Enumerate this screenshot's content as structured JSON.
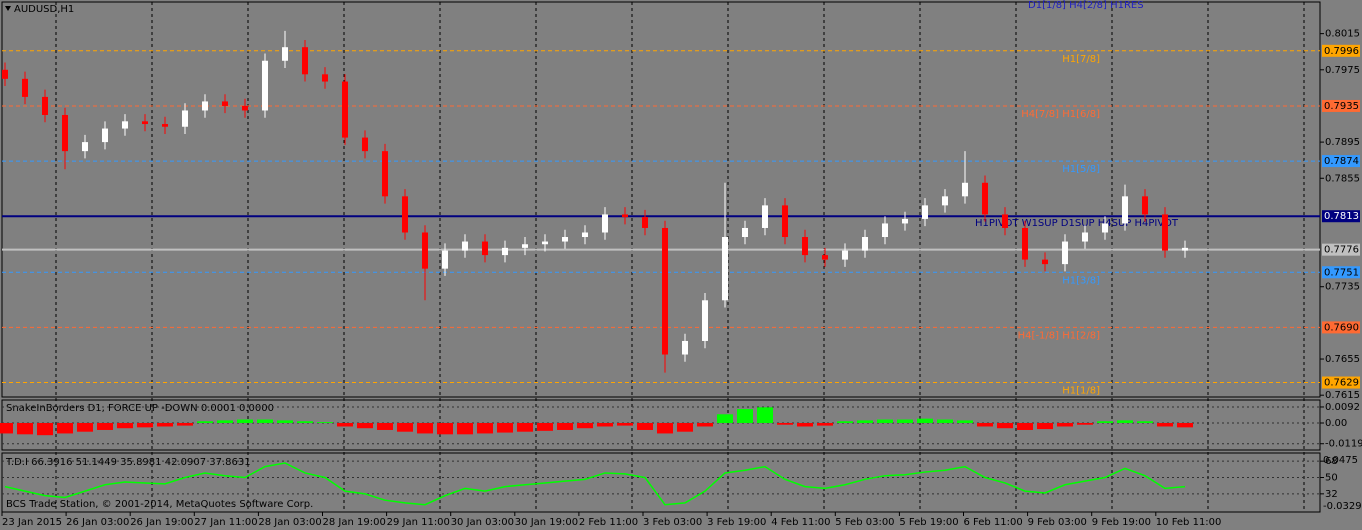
{
  "chart_data": [
    {
      "type": "candlestick",
      "title": "AUDUSD,H1",
      "top_note": "D1[1/8] H4[2/8] H1RES",
      "pivot_note": "H1PIVOT W1SUP D1SUP H4SUP H4PIVOT",
      "x_labels": [
        "23 Jan 2015",
        "26 Jan 03:00",
        "26 Jan 19:00",
        "27 Jan 11:00",
        "28 Jan 03:00",
        "28 Jan 19:00",
        "29 Jan 11:00",
        "30 Jan 03:00",
        "30 Jan 19:00",
        "2 Feb 11:00",
        "3 Feb 03:00",
        "3 Feb 19:00",
        "4 Feb 11:00",
        "5 Feb 03:00",
        "5 Feb 19:00",
        "6 Feb 11:00",
        "9 Feb 03:00",
        "9 Feb 19:00",
        "10 Feb 11:00"
      ],
      "open": [
        0.7975,
        0.7965,
        0.7945,
        0.7925,
        0.7885,
        0.7895,
        0.791,
        0.7918,
        0.7915,
        0.7912,
        0.793,
        0.794,
        0.7935,
        0.793,
        0.7985,
        0.8,
        0.797,
        0.7962,
        0.79,
        0.7885,
        0.7835,
        0.7795,
        0.7755,
        0.7775,
        0.7785,
        0.777,
        0.7778,
        0.7782,
        0.7785,
        0.779,
        0.7795,
        0.7815,
        0.7812,
        0.78,
        0.766,
        0.7675,
        0.772,
        0.779,
        0.78,
        0.7825,
        0.779,
        0.777,
        0.7765,
        0.7775,
        0.779,
        0.7805,
        0.781,
        0.7825,
        0.7835,
        0.785,
        0.7815,
        0.78,
        0.7765,
        0.776,
        0.7785,
        0.7795,
        0.7805,
        0.7835,
        0.7815,
        0.7775
      ],
      "high": [
        0.7983,
        0.7973,
        0.7953,
        0.7933,
        0.7903,
        0.7918,
        0.7926,
        0.7926,
        0.7923,
        0.7938,
        0.7948,
        0.7948,
        0.7943,
        0.7993,
        0.8018,
        0.8008,
        0.7978,
        0.797,
        0.7908,
        0.7893,
        0.7843,
        0.7803,
        0.7783,
        0.7793,
        0.7793,
        0.7786,
        0.779,
        0.7793,
        0.7798,
        0.7803,
        0.7823,
        0.7823,
        0.782,
        0.7808,
        0.7683,
        0.7728,
        0.785,
        0.7808,
        0.7833,
        0.7833,
        0.7798,
        0.7778,
        0.7783,
        0.7798,
        0.7813,
        0.7818,
        0.7833,
        0.7843,
        0.7885,
        0.7858,
        0.7823,
        0.7808,
        0.7773,
        0.7793,
        0.7803,
        0.7813,
        0.7848,
        0.7843,
        0.7823,
        0.7786
      ],
      "low": [
        0.7957,
        0.7937,
        0.7917,
        0.7865,
        0.7877,
        0.7887,
        0.7902,
        0.7907,
        0.7904,
        0.7904,
        0.7922,
        0.7927,
        0.7922,
        0.7922,
        0.7977,
        0.7962,
        0.7954,
        0.7892,
        0.7877,
        0.7827,
        0.7787,
        0.772,
        0.7747,
        0.7767,
        0.7762,
        0.7762,
        0.777,
        0.7774,
        0.7777,
        0.7782,
        0.7787,
        0.7804,
        0.7792,
        0.764,
        0.7652,
        0.7667,
        0.7712,
        0.7782,
        0.7792,
        0.7782,
        0.7762,
        0.7757,
        0.7757,
        0.7767,
        0.7782,
        0.7797,
        0.7802,
        0.7817,
        0.7827,
        0.7807,
        0.7792,
        0.7757,
        0.7752,
        0.7752,
        0.7777,
        0.7787,
        0.7797,
        0.7807,
        0.7767,
        0.7767
      ],
      "close": [
        0.7965,
        0.7945,
        0.7925,
        0.7885,
        0.7895,
        0.791,
        0.7918,
        0.7915,
        0.7912,
        0.793,
        0.794,
        0.7935,
        0.793,
        0.7985,
        0.8,
        0.797,
        0.7962,
        0.79,
        0.7885,
        0.7835,
        0.7795,
        0.7755,
        0.7775,
        0.7785,
        0.777,
        0.7778,
        0.7782,
        0.7785,
        0.779,
        0.7795,
        0.7815,
        0.7812,
        0.78,
        0.766,
        0.7675,
        0.772,
        0.779,
        0.78,
        0.7825,
        0.779,
        0.777,
        0.7765,
        0.7775,
        0.779,
        0.7805,
        0.781,
        0.7825,
        0.7835,
        0.785,
        0.7815,
        0.78,
        0.7765,
        0.776,
        0.7785,
        0.7795,
        0.7805,
        0.7835,
        0.7815,
        0.7775,
        0.7778
      ],
      "up_color": "#ffffff",
      "down_color": "#ff0000",
      "ylim": [
        0.7613,
        0.805
      ],
      "yticks": [
        0.8015,
        0.7975,
        0.7895,
        0.7855,
        0.7735,
        0.7655,
        0.7615
      ],
      "levels": [
        {
          "value": 0.7996,
          "name": "H1[7/8]",
          "color": "#ffa500",
          "dashed": true
        },
        {
          "value": 0.7935,
          "name": "H4[7/8] H1[6/8]",
          "color": "#ff6a33",
          "dashed": true
        },
        {
          "value": 0.7874,
          "name": "H1[5/8]",
          "color": "#3399ff",
          "dashed": true
        },
        {
          "value": 0.7813,
          "color": "#000080",
          "dashed": false
        },
        {
          "value": 0.7776,
          "color": "#c0c0c0",
          "dashed": false
        },
        {
          "value": 0.7751,
          "name": "H1[3/8]",
          "color": "#3399ff",
          "dashed": true
        },
        {
          "value": 0.769,
          "label": "0.7690",
          "name": "H4[-1/8] H1[2/8]",
          "color": "#ff6a33",
          "dashed": true
        },
        {
          "value": 0.7629,
          "name": "H1[1/8]",
          "color": "#ffa500",
          "dashed": true
        }
      ]
    },
    {
      "type": "histogram",
      "title": "SnakeInBorders D1, FORCE UP -DOWN 0.0001 0.0000",
      "values": [
        -0.006,
        -0.0065,
        -0.007,
        -0.006,
        -0.005,
        -0.004,
        -0.003,
        -0.0025,
        -0.002,
        -0.0015,
        0.001,
        0.0015,
        0.002,
        0.002,
        0.0015,
        0.001,
        0.0005,
        -0.002,
        -0.003,
        -0.004,
        -0.005,
        -0.006,
        -0.0065,
        -0.0065,
        -0.006,
        -0.0055,
        -0.005,
        -0.0045,
        -0.004,
        -0.003,
        -0.002,
        -0.0015,
        -0.004,
        -0.006,
        -0.005,
        -0.002,
        0.005,
        0.008,
        0.009,
        -0.001,
        -0.002,
        -0.0015,
        0.001,
        0.0015,
        0.002,
        0.002,
        0.0025,
        0.002,
        0.0015,
        -0.002,
        -0.003,
        -0.004,
        -0.0035,
        -0.002,
        -0.001,
        0.001,
        0.0015,
        0.001,
        -0.002,
        -0.0025
      ],
      "up_color": "#00ff00",
      "down_color": "#ff0000",
      "ylim": [
        -0.0155,
        0.0132
      ],
      "yticks": [
        0.0092,
        {
          "value": 0,
          "label": "0.00"
        },
        -0.0119
      ]
    },
    {
      "type": "line",
      "title": "T.D.I 66.3916 51.1449 35.8981 42.0907 37.8631",
      "values": [
        40,
        35,
        30,
        28,
        35,
        42,
        45,
        44,
        43,
        50,
        55,
        52,
        50,
        62,
        66,
        55,
        50,
        35,
        32,
        25,
        22,
        20,
        30,
        38,
        35,
        40,
        42,
        44,
        46,
        48,
        55,
        54,
        50,
        20,
        22,
        35,
        55,
        58,
        62,
        48,
        40,
        38,
        42,
        48,
        52,
        53,
        56,
        58,
        62,
        50,
        44,
        35,
        33,
        42,
        46,
        50,
        60,
        52,
        38,
        40
      ],
      "color": "#00ff00",
      "ylim": [
        12,
        77
      ],
      "yticks": [
        68,
        50,
        32
      ],
      "axis_notes": [
        "0.0475",
        "-0.0329"
      ],
      "footer": "BCS Trade Station, © 2001-2014, MetaQuotes Software Corp."
    }
  ]
}
